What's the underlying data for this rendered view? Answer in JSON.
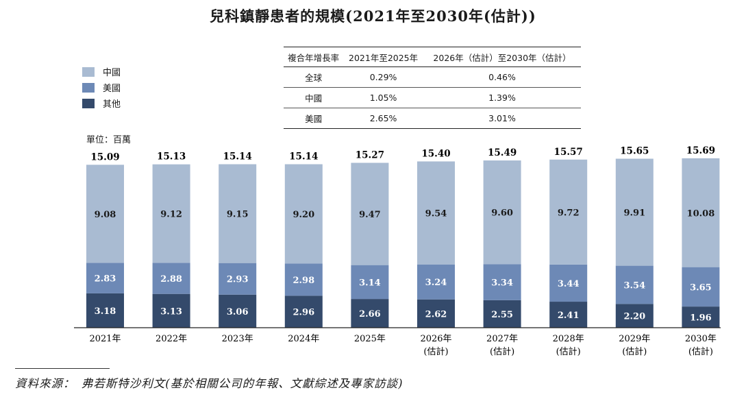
{
  "title": "兒科鎮靜患者的規模(2021年至2030年(估計))",
  "unit": "單位：百萬",
  "legend": [
    {
      "label": "中國",
      "color": "#a9bbd2"
    },
    {
      "label": "美國",
      "color": "#6d89b6"
    },
    {
      "label": "其他",
      "color": "#344a6b"
    }
  ],
  "table": {
    "headers": [
      "複合年增長率",
      "2021年至2025年",
      "2026年（估計）至2030年（估計）"
    ],
    "rows": [
      [
        "全球",
        "0.29%",
        "0.46%"
      ],
      [
        "中國",
        "1.05%",
        "1.39%"
      ],
      [
        "美國",
        "2.65%",
        "3.01%"
      ]
    ]
  },
  "source": "資料來源：　弗若斯特沙利文(基於相關公司的年報、文獻綜述及專家訪談)",
  "chart_data": {
    "type": "bar",
    "stacked": true,
    "categories": [
      "2021年",
      "2022年",
      "2023年",
      "2024年",
      "2025年",
      "2026年",
      "2027年",
      "2028年",
      "2029年",
      "2030年"
    ],
    "category_sublabels": [
      "",
      "",
      "",
      "",
      "",
      "(估計)",
      "(估計)",
      "(估計)",
      "(估計)",
      "(估計)"
    ],
    "series": [
      {
        "name": "其他",
        "color": "#344a6b",
        "values": [
          3.18,
          3.13,
          3.06,
          2.96,
          2.66,
          2.62,
          2.55,
          2.41,
          2.2,
          1.96
        ]
      },
      {
        "name": "美國",
        "color": "#6d89b6",
        "values": [
          2.83,
          2.88,
          2.93,
          2.98,
          3.14,
          3.24,
          3.34,
          3.44,
          3.54,
          3.65
        ]
      },
      {
        "name": "中國",
        "color": "#a9bbd2",
        "values": [
          9.08,
          9.12,
          9.15,
          9.2,
          9.47,
          9.54,
          9.6,
          9.72,
          9.91,
          10.08
        ]
      }
    ],
    "value_labels": [
      [
        "3.18",
        "3.13",
        "3.06",
        "2.96",
        "2.66",
        "2.62",
        "2.55",
        "2.41",
        "2.20",
        "1.96"
      ],
      [
        "2.83",
        "2.88",
        "2.93",
        "2.98",
        "3.14",
        "3.24",
        "3.34",
        "3.44",
        "3.54",
        "3.65"
      ],
      [
        "9.08",
        "9.12",
        "9.15",
        "9.20",
        "9.47",
        "9.54",
        "9.60",
        "9.72",
        "9.91",
        "10.08"
      ]
    ],
    "totals": [
      "15.09",
      "15.13",
      "15.14",
      "15.14",
      "15.27",
      "15.40",
      "15.49",
      "15.57",
      "15.65",
      "15.69"
    ],
    "ylim": [
      0,
      16
    ],
    "grid": false,
    "legend_position": "top-left"
  }
}
